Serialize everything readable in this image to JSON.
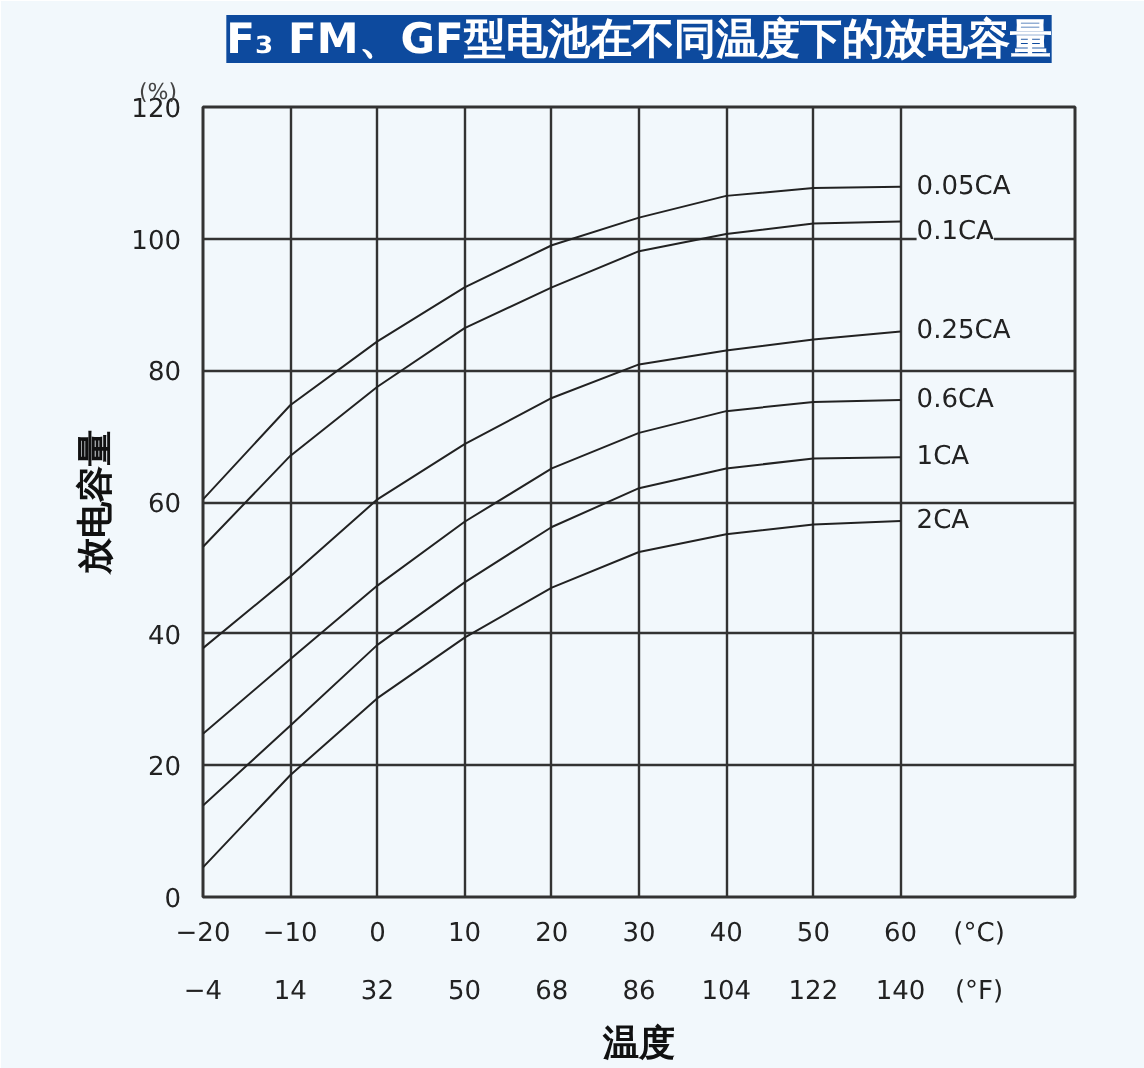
{
  "chart_data": {
    "type": "line",
    "title": "F₃ FM、GF型电池在不同温度下的放电容量",
    "xlabel": "温度",
    "ylabel": "放电容量",
    "x": [
      -20,
      -10,
      0,
      10,
      20,
      30,
      40,
      50,
      60
    ],
    "series": [
      {
        "name": "0.05CA",
        "color": "#222222",
        "values": [
          60.4,
          74.7,
          84.4,
          92.6,
          99,
          103.2,
          106.5,
          107.7,
          107.9
        ]
      },
      {
        "name": "0.1CA",
        "color": "#222222",
        "values": [
          53.2,
          67,
          77.5,
          86.4,
          92.6,
          98.1,
          100.7,
          102.3,
          102.6
        ]
      },
      {
        "name": "0.25CA",
        "color": "#222222",
        "values": [
          37.8,
          48.7,
          60.4,
          68.8,
          75.8,
          80.9,
          83,
          84.7,
          85.9
        ]
      },
      {
        "name": "0.6CA",
        "color": "#222222",
        "values": [
          24.8,
          36.1,
          47.3,
          57,
          65.1,
          70.5,
          73.8,
          75.2,
          75.5
        ]
      },
      {
        "name": "1CA",
        "color": "#222222",
        "values": [
          13.9,
          26,
          38.3,
          47.8,
          56.2,
          62.1,
          65.1,
          66.6,
          66.8
        ]
      },
      {
        "name": "2CA",
        "color": "#222222",
        "values": [
          4.5,
          18.5,
          30.2,
          39.4,
          47,
          52.4,
          55.1,
          56.6,
          57.1
        ]
      }
    ],
    "xlim": [
      -20,
      80
    ],
    "xticks": [
      -20,
      -10,
      0,
      10,
      20,
      30,
      40,
      50,
      60
    ],
    "x2lim": [
      -4,
      176
    ],
    "x2ticks": [
      -4,
      14,
      32,
      50,
      68,
      86,
      104,
      122,
      140
    ],
    "x2label": "(°F)",
    "ylim": [
      0,
      120
    ],
    "yticks": [
      0,
      20,
      40,
      60,
      80,
      100,
      120
    ],
    "grid": true,
    "annotations": [
      "(%)",
      "(°C)"
    ]
  }
}
